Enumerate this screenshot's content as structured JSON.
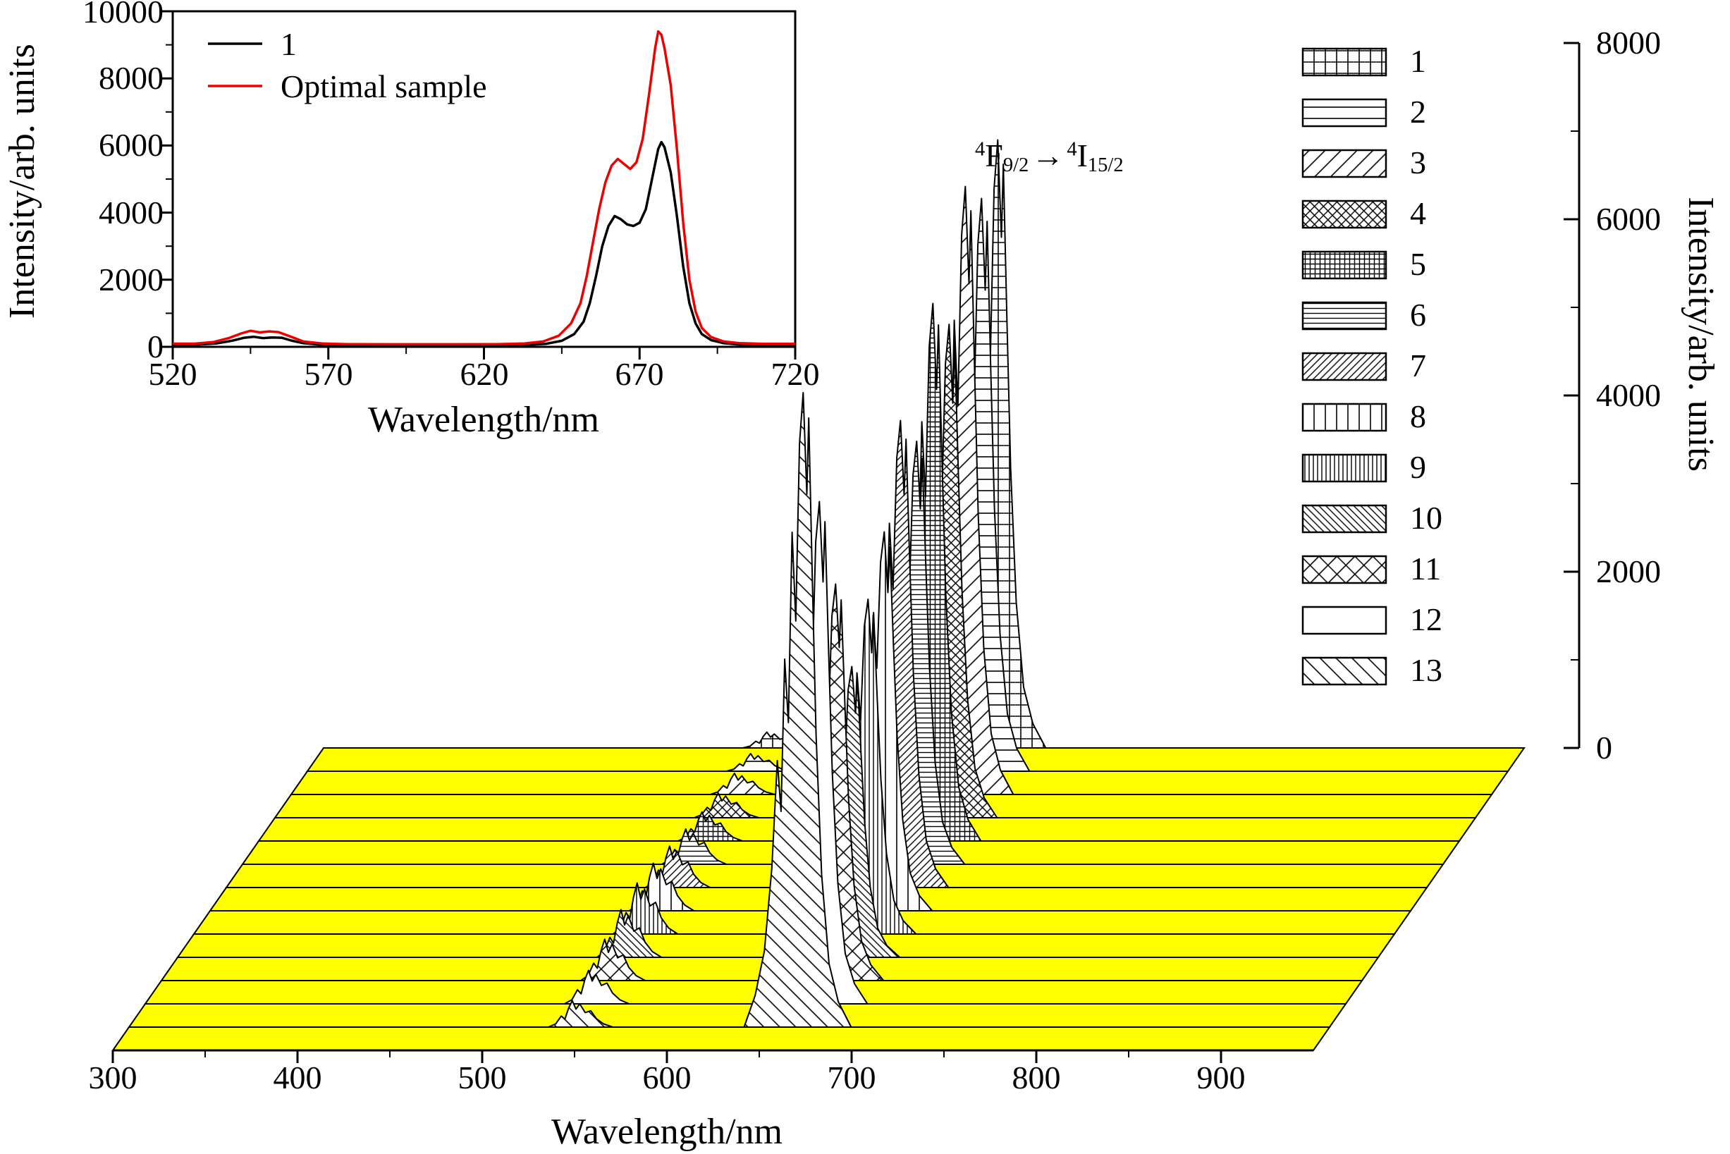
{
  "figure": {
    "background": "#ffffff"
  },
  "chart_data": {
    "inset": {
      "type": "line",
      "xlabel": "Wavelength/nm",
      "ylabel": "Intensity/arb. units",
      "xlim": [
        520,
        720
      ],
      "ylim": [
        0,
        10000
      ],
      "x_ticks": [
        520,
        570,
        620,
        670,
        720
      ],
      "y_ticks": [
        0,
        2000,
        4000,
        6000,
        8000,
        10000
      ],
      "legend_position": "top-left",
      "series": [
        {
          "name": "1",
          "color": "#000000",
          "points": [
            [
              520,
              70
            ],
            [
              528,
              70
            ],
            [
              534,
              100
            ],
            [
              539,
              180
            ],
            [
              543,
              270
            ],
            [
              546,
              300
            ],
            [
              549,
              260
            ],
            [
              552,
              280
            ],
            [
              555,
              270
            ],
            [
              558,
              190
            ],
            [
              562,
              110
            ],
            [
              567,
              70
            ],
            [
              575,
              50
            ],
            [
              590,
              45
            ],
            [
              610,
              45
            ],
            [
              625,
              50
            ],
            [
              634,
              60
            ],
            [
              640,
              90
            ],
            [
              645,
              180
            ],
            [
              649,
              380
            ],
            [
              652,
              750
            ],
            [
              654,
              1300
            ],
            [
              656,
              2100
            ],
            [
              658,
              3000
            ],
            [
              660,
              3600
            ],
            [
              662,
              3900
            ],
            [
              664,
              3800
            ],
            [
              666,
              3650
            ],
            [
              668,
              3600
            ],
            [
              670,
              3700
            ],
            [
              672,
              4100
            ],
            [
              674,
              5000
            ],
            [
              676,
              5900
            ],
            [
              677,
              6100
            ],
            [
              678,
              5950
            ],
            [
              680,
              5200
            ],
            [
              682,
              3900
            ],
            [
              684,
              2400
            ],
            [
              686,
              1300
            ],
            [
              688,
              700
            ],
            [
              690,
              380
            ],
            [
              693,
              200
            ],
            [
              697,
              110
            ],
            [
              702,
              70
            ],
            [
              710,
              55
            ],
            [
              720,
              55
            ]
          ]
        },
        {
          "name": "Optimal sample",
          "color": "#ee0000",
          "points": [
            [
              520,
              95
            ],
            [
              527,
              95
            ],
            [
              533,
              140
            ],
            [
              538,
              260
            ],
            [
              542,
              400
            ],
            [
              545,
              480
            ],
            [
              548,
              430
            ],
            [
              551,
              460
            ],
            [
              554,
              440
            ],
            [
              558,
              300
            ],
            [
              562,
              160
            ],
            [
              568,
              100
            ],
            [
              576,
              80
            ],
            [
              590,
              75
            ],
            [
              610,
              75
            ],
            [
              624,
              80
            ],
            [
              633,
              100
            ],
            [
              639,
              160
            ],
            [
              644,
              330
            ],
            [
              648,
              700
            ],
            [
              651,
              1300
            ],
            [
              653,
              2100
            ],
            [
              655,
              3100
            ],
            [
              657,
              4100
            ],
            [
              659,
              4900
            ],
            [
              661,
              5400
            ],
            [
              663,
              5600
            ],
            [
              665,
              5450
            ],
            [
              667,
              5300
            ],
            [
              669,
              5500
            ],
            [
              671,
              6200
            ],
            [
              673,
              7500
            ],
            [
              675,
              8900
            ],
            [
              676,
              9400
            ],
            [
              677,
              9300
            ],
            [
              678,
              8900
            ],
            [
              680,
              7800
            ],
            [
              682,
              5900
            ],
            [
              684,
              3700
            ],
            [
              686,
              2000
            ],
            [
              688,
              1050
            ],
            [
              690,
              560
            ],
            [
              693,
              290
            ],
            [
              697,
              160
            ],
            [
              702,
              110
            ],
            [
              710,
              90
            ],
            [
              720,
              90
            ]
          ]
        }
      ]
    },
    "waterfall": {
      "type": "area",
      "xlabel": "Wavelength/nm",
      "ylabel": "Intensity/arb. units",
      "xlim": [
        300,
        950
      ],
      "ylim": [
        0,
        8000
      ],
      "x_ticks": [
        300,
        400,
        500,
        600,
        700,
        800,
        900
      ],
      "y_ticks": [
        0,
        2000,
        4000,
        6000,
        8000
      ],
      "base_color": "#ffff00",
      "annotation": {
        "sup1": "4",
        "term1": "F",
        "sub1": "9/2",
        "arrow": "→",
        "sup2": "4",
        "term2": "I",
        "sub2": "15/2",
        "text": "4F9/2 → 4I15/2"
      },
      "green_profile": [
        [
          -18,
          0
        ],
        [
          -14,
          0.12
        ],
        [
          -11,
          0.42
        ],
        [
          -9,
          0.3
        ],
        [
          -7,
          0.72
        ],
        [
          -5,
          1.0
        ],
        [
          -3,
          0.68
        ],
        [
          -1,
          0.88
        ],
        [
          2,
          0.55
        ],
        [
          5,
          0.62
        ],
        [
          8,
          0.32
        ],
        [
          12,
          0.12
        ],
        [
          17,
          0
        ]
      ],
      "red_profile": [
        [
          -34,
          0
        ],
        [
          -28,
          0.05
        ],
        [
          -23,
          0.12
        ],
        [
          -19,
          0.25
        ],
        [
          -16,
          0.42
        ],
        [
          -14,
          0.34
        ],
        [
          -12,
          0.58
        ],
        [
          -10,
          0.48
        ],
        [
          -8,
          0.78
        ],
        [
          -6,
          0.64
        ],
        [
          -4,
          0.92
        ],
        [
          -2,
          1.0
        ],
        [
          0,
          0.84
        ],
        [
          1,
          0.96
        ],
        [
          3,
          0.7
        ],
        [
          5,
          0.46
        ],
        [
          8,
          0.24
        ],
        [
          12,
          0.1
        ],
        [
          17,
          0.04
        ],
        [
          24,
          0
        ]
      ],
      "samples": [
        {
          "id": 1,
          "pattern": "grid-wide",
          "green_center": 545,
          "green_height": 180,
          "red_center": 667,
          "red_height": 6900
        },
        {
          "id": 2,
          "pattern": "hlines-wide",
          "green_center": 545,
          "green_height": 200,
          "red_center": 667,
          "red_height": 6500
        },
        {
          "id": 3,
          "pattern": "diag-up-wide",
          "green_center": 545,
          "green_height": 240,
          "red_center": 667,
          "red_height": 6900
        },
        {
          "id": 4,
          "pattern": "crosshatch-dense",
          "green_center": 545,
          "green_height": 280,
          "red_center": 667,
          "red_height": 5600
        },
        {
          "id": 5,
          "pattern": "grid-dense",
          "green_center": 545,
          "green_height": 330,
          "red_center": 667,
          "red_height": 6100
        },
        {
          "id": 6,
          "pattern": "hlines-dense",
          "green_center": 545,
          "green_height": 400,
          "red_center": 667,
          "red_height": 4800
        },
        {
          "id": 7,
          "pattern": "diag-up-dense",
          "green_center": 545,
          "green_height": 470,
          "red_center": 667,
          "red_height": 5300
        },
        {
          "id": 8,
          "pattern": "vlines-wide",
          "green_center": 545,
          "green_height": 540,
          "red_center": 667,
          "red_height": 4300
        },
        {
          "id": 9,
          "pattern": "vlines-dense",
          "green_center": 545,
          "green_height": 580,
          "red_center": 667,
          "red_height": 3800
        },
        {
          "id": 10,
          "pattern": "diag-down-dense",
          "green_center": 545,
          "green_height": 540,
          "red_center": 667,
          "red_height": 3300
        },
        {
          "id": 11,
          "pattern": "crosshatch-wide",
          "green_center": 545,
          "green_height": 470,
          "red_center": 667,
          "red_height": 4500
        },
        {
          "id": 12,
          "pattern": "plain",
          "green_center": 545,
          "green_height": 380,
          "red_center": 667,
          "red_height": 5700
        },
        {
          "id": 13,
          "pattern": "diag-down-wide",
          "green_center": 545,
          "green_height": 300,
          "red_center": 667,
          "red_height": 7200
        }
      ]
    }
  }
}
